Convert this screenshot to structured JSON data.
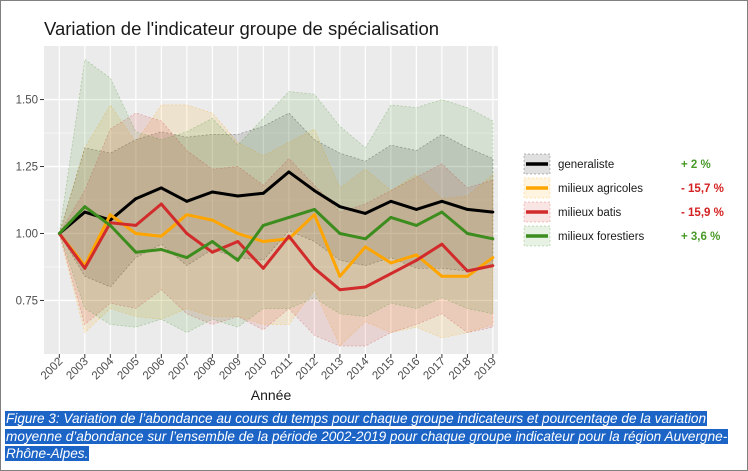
{
  "chart_data": {
    "type": "line",
    "title": "Variation de l'indicateur groupe de spécialisation",
    "xlabel": "Année",
    "ylabel": "",
    "x": [
      "2002",
      "2003",
      "2004",
      "2005",
      "2006",
      "2007",
      "2008",
      "2009",
      "2010",
      "2011",
      "2012",
      "2013",
      "2014",
      "2015",
      "2016",
      "2017",
      "2018",
      "2019"
    ],
    "ylim": [
      0.55,
      1.7
    ],
    "yticks": [
      0.75,
      1.0,
      1.25,
      1.5
    ],
    "ytick_labels": [
      "0.75",
      "1.00",
      "1.25",
      "1.50"
    ],
    "grid": true,
    "legend_position": "right",
    "series": [
      {
        "name": "generaliste",
        "pct": "+ 2 %",
        "color": "#000000",
        "pct_color": "#4a9a2a",
        "values": [
          1.0,
          1.08,
          1.05,
          1.13,
          1.17,
          1.12,
          1.155,
          1.14,
          1.15,
          1.23,
          1.16,
          1.1,
          1.075,
          1.12,
          1.09,
          1.12,
          1.09,
          1.08
        ],
        "upper": [
          1.0,
          1.32,
          1.3,
          1.35,
          1.38,
          1.36,
          1.37,
          1.37,
          1.4,
          1.45,
          1.35,
          1.3,
          1.27,
          1.33,
          1.31,
          1.37,
          1.32,
          1.28
        ],
        "lower": [
          1.0,
          0.84,
          0.8,
          0.91,
          0.96,
          0.88,
          0.94,
          0.91,
          0.9,
          1.01,
          0.97,
          0.9,
          0.88,
          0.91,
          0.87,
          0.87,
          0.86,
          0.88
        ]
      },
      {
        "name": "milieux agricoles",
        "pct": "- 15,7 %",
        "color": "#ffa500",
        "pct_color": "#d42020",
        "values": [
          1.0,
          0.88,
          1.07,
          1.0,
          0.99,
          1.07,
          1.05,
          1.0,
          0.97,
          0.98,
          1.07,
          0.84,
          0.95,
          0.89,
          0.92,
          0.84,
          0.84,
          0.91
        ],
        "upper": [
          1.0,
          1.32,
          1.48,
          1.34,
          1.48,
          1.48,
          1.45,
          1.34,
          1.29,
          1.34,
          1.39,
          1.17,
          1.24,
          1.16,
          1.22,
          1.13,
          1.14,
          1.22
        ],
        "lower": [
          1.0,
          0.63,
          0.72,
          0.69,
          0.68,
          0.72,
          0.69,
          0.69,
          0.66,
          0.66,
          0.79,
          0.58,
          0.67,
          0.63,
          0.65,
          0.61,
          0.63,
          0.66
        ]
      },
      {
        "name": "milieux batis",
        "pct": "- 15,9 %",
        "color": "#d22b2b",
        "pct_color": "#d42020",
        "values": [
          1.0,
          0.87,
          1.04,
          1.03,
          1.11,
          1.0,
          0.93,
          0.97,
          0.87,
          0.99,
          0.87,
          0.79,
          0.8,
          0.85,
          0.9,
          0.96,
          0.86,
          0.88
        ],
        "upper": [
          1.0,
          1.16,
          1.39,
          1.45,
          1.42,
          1.31,
          1.24,
          1.25,
          1.18,
          1.28,
          1.18,
          1.08,
          1.11,
          1.16,
          1.21,
          1.26,
          1.17,
          1.2
        ],
        "lower": [
          1.0,
          0.66,
          0.74,
          0.72,
          0.79,
          0.7,
          0.66,
          0.69,
          0.64,
          0.72,
          0.62,
          0.58,
          0.58,
          0.63,
          0.66,
          0.7,
          0.63,
          0.65
        ]
      },
      {
        "name": "milieux forestiers",
        "pct": "+ 3,6  %",
        "color": "#3c8c1e",
        "pct_color": "#4a9a2a",
        "values": [
          1.0,
          1.1,
          1.03,
          0.93,
          0.94,
          0.91,
          0.97,
          0.9,
          1.03,
          1.06,
          1.09,
          1.0,
          0.98,
          1.06,
          1.03,
          1.08,
          1.0,
          0.98
        ],
        "upper": [
          1.0,
          1.65,
          1.58,
          1.38,
          1.35,
          1.38,
          1.43,
          1.33,
          1.43,
          1.53,
          1.52,
          1.4,
          1.32,
          1.48,
          1.47,
          1.5,
          1.47,
          1.42
        ],
        "lower": [
          1.0,
          0.72,
          0.66,
          0.65,
          0.68,
          0.63,
          0.68,
          0.65,
          0.72,
          0.72,
          0.76,
          0.7,
          0.69,
          0.74,
          0.72,
          0.76,
          0.72,
          0.7
        ]
      }
    ]
  },
  "caption": "Figure 3: Variation de l’abondance au cours du temps pour chaque groupe indicateurs et pourcentage de la variation moyenne d’abondance sur l’ensemble de la période 2002-2019 pour chaque groupe indicateur pour la région Auvergne-Rhône-Alpes."
}
